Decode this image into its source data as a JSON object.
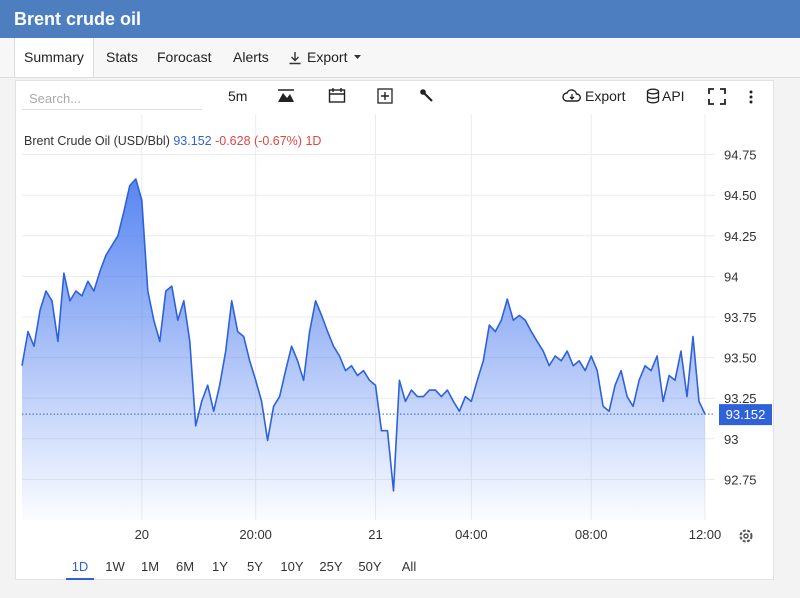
{
  "header": {
    "title": "Brent crude oil"
  },
  "tabs": [
    "Summary",
    "Stats",
    "Forocast",
    "Alerts",
    "Export"
  ],
  "toolbar": {
    "search_placeholder": "Search...",
    "interval": "5m",
    "export": "Export",
    "api": "API"
  },
  "chart_data": {
    "type": "area",
    "legend": {
      "name": "Brent Crude Oil (USD/Bbl)",
      "change": -0.628,
      "change_percent": "(-0.67%)",
      "period": "1D"
    },
    "categories": [
      null,
      null,
      null,
      null,
      null,
      null,
      null,
      null,
      null,
      null,
      null,
      null,
      null,
      null,
      null,
      null,
      null,
      null,
      null,
      null,
      "20",
      null,
      null,
      null,
      null,
      null,
      null,
      null,
      null,
      null,
      null,
      null,
      null,
      null,
      null,
      null,
      null,
      null,
      null,
      "20:00",
      null,
      null,
      null,
      null,
      null,
      null,
      null,
      null,
      null,
      null,
      null,
      null,
      null,
      null,
      null,
      null,
      null,
      null,
      null,
      "21",
      null,
      null,
      null,
      null,
      null,
      null,
      null,
      null,
      null,
      null,
      null,
      null,
      null,
      null,
      null,
      "04:00",
      null,
      null,
      null,
      null,
      null,
      null,
      null,
      null,
      null,
      null,
      null,
      null,
      null,
      null,
      null,
      null,
      null,
      null,
      null,
      "08:00",
      null,
      null,
      null,
      null,
      null,
      null,
      null,
      null,
      null,
      null,
      null,
      null,
      null,
      null,
      null,
      null,
      null,
      null,
      "12:00"
    ],
    "series": [
      {
        "name": "Brent Crude Oil (USD/Bbl)",
        "color": "#2f62d8",
        "values": [
          93.45,
          93.66,
          93.57,
          93.79,
          93.91,
          93.85,
          93.6,
          94.02,
          93.85,
          93.91,
          93.88,
          93.97,
          93.91,
          94.03,
          94.13,
          94.19,
          94.25,
          94.4,
          94.56,
          94.6,
          94.47,
          93.91,
          93.73,
          93.6,
          93.91,
          93.94,
          93.73,
          93.85,
          93.6,
          93.08,
          93.23,
          93.33,
          93.17,
          93.33,
          93.54,
          93.85,
          93.66,
          93.63,
          93.48,
          93.36,
          93.23,
          92.99,
          93.2,
          93.26,
          93.42,
          93.57,
          93.48,
          93.36,
          93.66,
          93.85,
          93.76,
          93.66,
          93.57,
          93.51,
          93.42,
          93.45,
          93.39,
          93.42,
          93.36,
          93.33,
          93.05,
          93.05,
          92.68,
          93.36,
          93.23,
          93.3,
          93.26,
          93.26,
          93.3,
          93.3,
          93.26,
          93.3,
          93.23,
          93.17,
          93.26,
          93.23,
          93.36,
          93.48,
          93.7,
          93.66,
          93.73,
          93.86,
          93.73,
          93.76,
          93.73,
          93.66,
          93.6,
          93.54,
          93.45,
          93.51,
          93.48,
          93.54,
          93.45,
          93.48,
          93.42,
          93.51,
          93.42,
          93.2,
          93.17,
          93.33,
          93.42,
          93.26,
          93.2,
          93.36,
          93.45,
          93.42,
          93.51,
          93.23,
          93.39,
          93.36,
          93.54,
          93.26,
          93.63,
          93.23,
          93.152
        ]
      }
    ],
    "ylim": [
      92.5,
      95
    ],
    "yticks": [
      92.75,
      93,
      93.25,
      {
        "value": 93.5,
        "label": "93.50"
      },
      93.75,
      94,
      94.25,
      {
        "value": 94.5,
        "label": "94.50"
      },
      94.75
    ],
    "grid": true
  },
  "ranges": [
    "1D",
    "1W",
    "1M",
    "6M",
    "1Y",
    "5Y",
    "10Y",
    "25Y",
    "50Y",
    "All"
  ]
}
